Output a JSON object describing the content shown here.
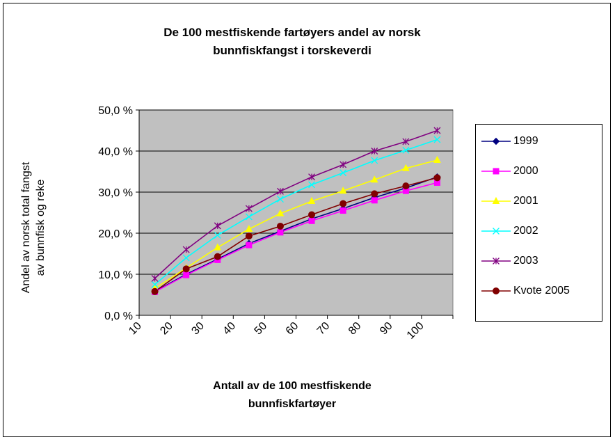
{
  "chart_data": {
    "type": "line",
    "title_lines": [
      "De 100 mestfiskende fartøyers andel av norsk",
      "bunnfiskfangst i torskeverdi"
    ],
    "xlabel_lines": [
      "Antall av de 100 mestfiskende",
      "bunnfiskfartøyer"
    ],
    "ylabel_lines": [
      "Andel av norsk total fangst",
      "av bunnfisk og reke"
    ],
    "categories": [
      "10",
      "20",
      "30",
      "40",
      "50",
      "60",
      "70",
      "80",
      "90",
      "100"
    ],
    "y_ticks": [
      "0,0 %",
      "10,0 %",
      "20,0 %",
      "30,0 %",
      "40,0 %",
      "50,0 %"
    ],
    "ylim": [
      0,
      50
    ],
    "grid": true,
    "plot_background": "#c0c0c0",
    "legend_position": "right",
    "series": [
      {
        "name": "1999",
        "color": "#000080",
        "marker": "diamond",
        "values": [
          5.8,
          10.0,
          13.7,
          17.5,
          20.5,
          23.5,
          26.0,
          28.7,
          31.0,
          33.7
        ]
      },
      {
        "name": "2000",
        "color": "#ff00ff",
        "marker": "square",
        "values": [
          5.7,
          9.8,
          13.5,
          17.1,
          20.2,
          23.0,
          25.5,
          28.0,
          30.3,
          32.3
        ]
      },
      {
        "name": "2001",
        "color": "#ffff00",
        "marker": "triangle",
        "values": [
          6.5,
          11.5,
          16.5,
          21.0,
          24.8,
          27.8,
          30.3,
          33.0,
          35.8,
          37.8
        ]
      },
      {
        "name": "2002",
        "color": "#00ffff",
        "marker": "x",
        "values": [
          7.5,
          14.0,
          19.5,
          24.0,
          28.3,
          31.8,
          34.7,
          37.7,
          40.2,
          42.8
        ]
      },
      {
        "name": "2003",
        "color": "#800080",
        "marker": "star",
        "values": [
          9.0,
          16.0,
          21.8,
          26.0,
          30.2,
          33.7,
          36.7,
          40.0,
          42.3,
          45.0
        ]
      },
      {
        "name": "Kvote 2005",
        "color": "#800000",
        "marker": "circle",
        "values": [
          5.8,
          11.3,
          14.3,
          19.3,
          21.7,
          24.5,
          27.2,
          29.6,
          31.5,
          33.5
        ]
      }
    ]
  }
}
